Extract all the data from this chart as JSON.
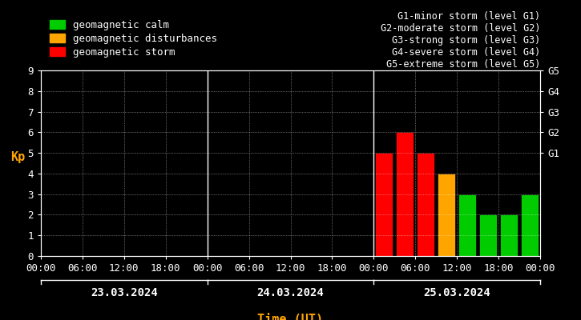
{
  "background_color": "#000000",
  "plot_bg_color": "#000000",
  "text_color": "#ffffff",
  "grid_color": "#ffffff",
  "ylabel_color": "#ffa500",
  "xlabel_color": "#ffa500",
  "ylabel": "Kp",
  "xlabel": "Time (UT)",
  "ylim": [
    0,
    9
  ],
  "yticks": [
    0,
    1,
    2,
    3,
    4,
    5,
    6,
    7,
    8,
    9
  ],
  "days": [
    "23.03.2024",
    "24.03.2024",
    "25.03.2024"
  ],
  "bars": [
    {
      "day": 2,
      "slot": 0,
      "value": 5,
      "color": "#ff0000"
    },
    {
      "day": 2,
      "slot": 1,
      "value": 6,
      "color": "#ff0000"
    },
    {
      "day": 2,
      "slot": 2,
      "value": 5,
      "color": "#ff0000"
    },
    {
      "day": 2,
      "slot": 3,
      "value": 4,
      "color": "#ffa500"
    },
    {
      "day": 2,
      "slot": 4,
      "value": 3,
      "color": "#00cc00"
    },
    {
      "day": 2,
      "slot": 5,
      "value": 2,
      "color": "#00cc00"
    },
    {
      "day": 2,
      "slot": 6,
      "value": 2,
      "color": "#00cc00"
    },
    {
      "day": 2,
      "slot": 7,
      "value": 3,
      "color": "#00cc00"
    }
  ],
  "legend_items": [
    {
      "label": "geomagnetic calm",
      "color": "#00cc00"
    },
    {
      "label": "geomagnetic disturbances",
      "color": "#ffa500"
    },
    {
      "label": "geomagnetic storm",
      "color": "#ff0000"
    }
  ],
  "right_legend": [
    "G1-minor storm (level G1)",
    "G2-moderate storm (level G2)",
    "G3-strong storm (level G3)",
    "G4-severe storm (level G4)",
    "G5-extreme storm (level G5)"
  ],
  "right_ytick_labels": [
    "G1",
    "G2",
    "G3",
    "G4",
    "G5"
  ],
  "right_ytick_values": [
    5,
    6,
    7,
    8,
    9
  ],
  "font_family": "monospace",
  "font_size": 9,
  "bar_width": 0.85
}
